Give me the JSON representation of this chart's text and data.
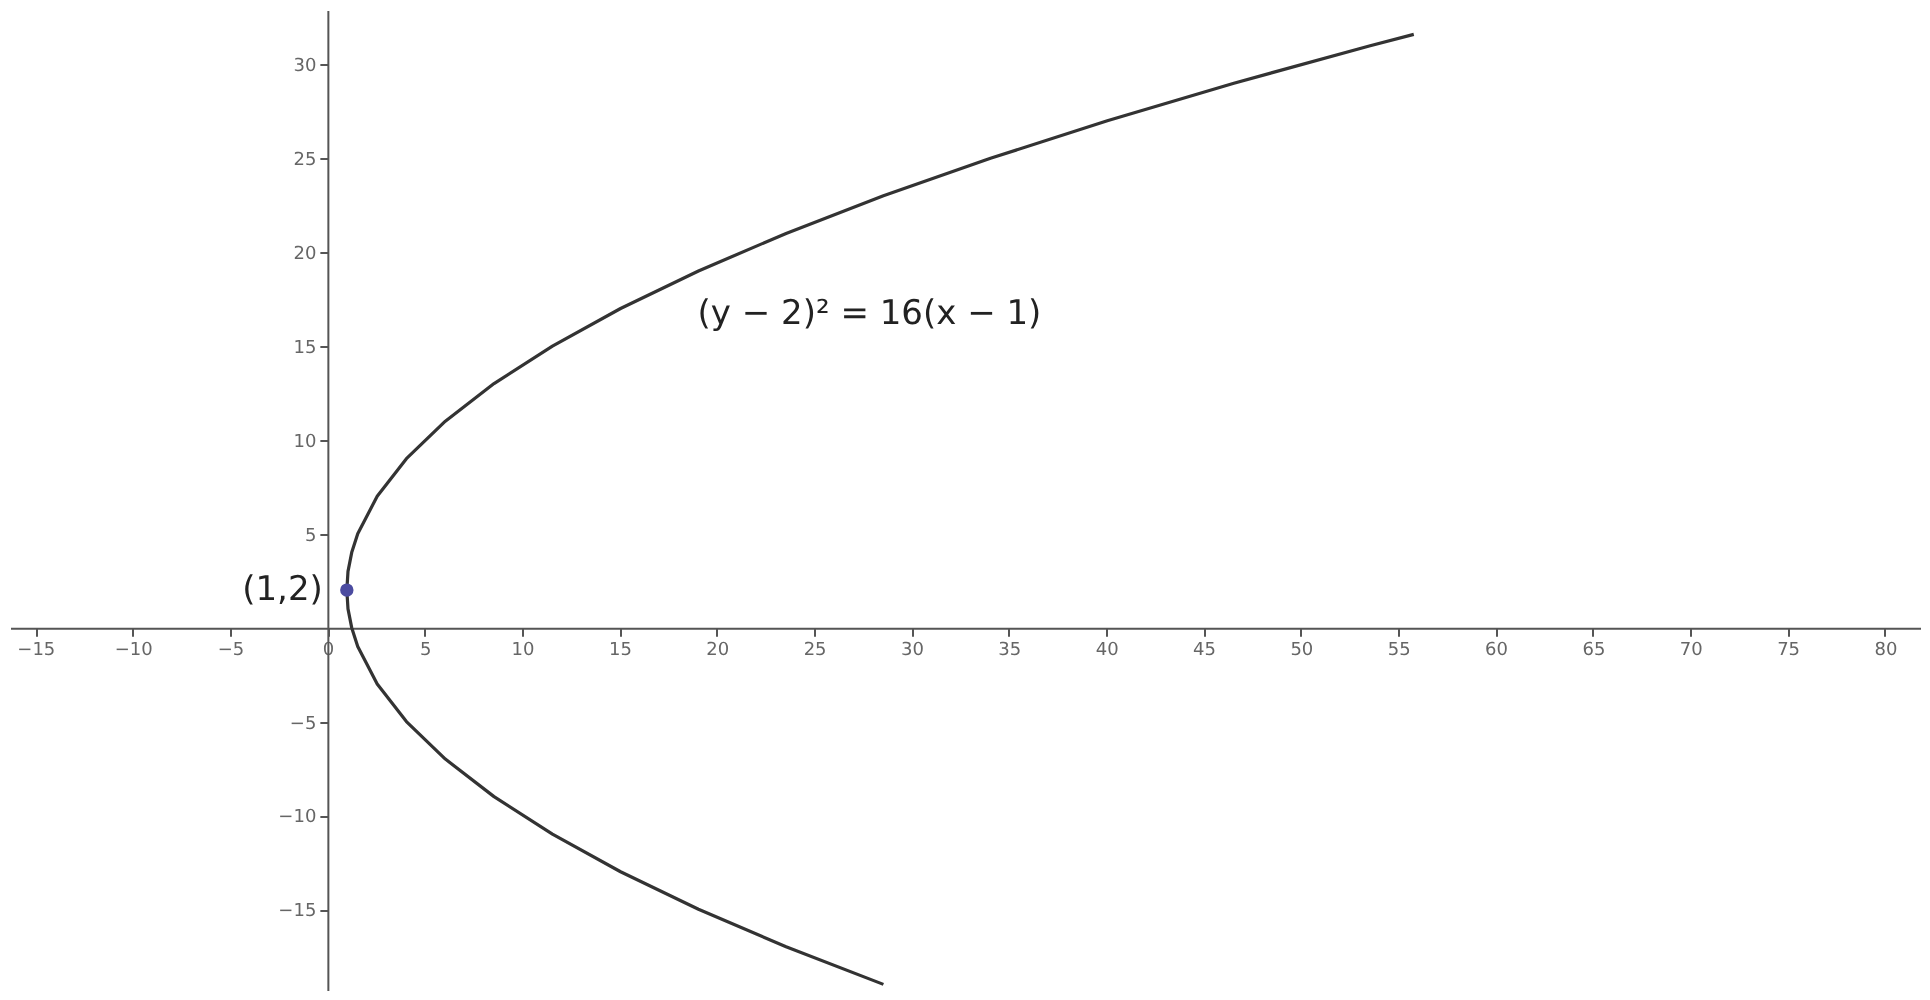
{
  "chart_data": {
    "type": "line",
    "xlim": [
      -16.3,
      81.8
    ],
    "ylim": [
      -19.3,
      32.9
    ],
    "xticks": [
      -15,
      -10,
      -5,
      0,
      5,
      10,
      15,
      20,
      25,
      30,
      35,
      40,
      45,
      50,
      55,
      60,
      65,
      70,
      75,
      80
    ],
    "yticks": [
      -15,
      -10,
      -5,
      5,
      10,
      15,
      20,
      25,
      30
    ],
    "grid": false,
    "series": [
      {
        "color": "#333333",
        "x": [
          28.56,
          23.56,
          19.06,
          15.06,
          11.56,
          8.56,
          6.06,
          4.06,
          2.56,
          1.56,
          1.25,
          1.06,
          1,
          1.06,
          1.25,
          1.56,
          2.56,
          4.06,
          6.06,
          8.56,
          11.56,
          15.06,
          19.06,
          23.56,
          28.56,
          34.06,
          40.06,
          46.56,
          53.56,
          55.8
        ],
        "values": [
          -19,
          -17,
          -15,
          -13,
          -11,
          -9,
          -7,
          -5,
          -3,
          -1,
          0,
          1,
          2,
          3,
          4,
          5,
          7,
          9,
          11,
          13,
          15,
          17,
          19,
          21,
          23,
          25,
          27,
          29,
          31,
          31.6
        ]
      },
      {
        "type": "scatter",
        "color": "#4b4ba0",
        "marker": "circle",
        "x": [
          1
        ],
        "values": [
          2
        ]
      }
    ],
    "annotations": [
      {
        "text": "(1,2)",
        "x": 1,
        "y": 2
      },
      "(y − 2)² = 16(x − 1)"
    ]
  }
}
